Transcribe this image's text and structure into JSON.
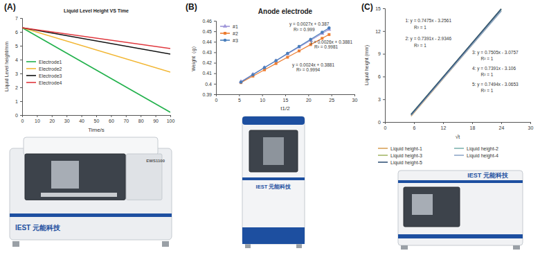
{
  "panels": [
    {
      "label": "(A)",
      "device_texts": [
        "IEST 元能科技",
        "EWS1100"
      ]
    },
    {
      "label": "(B)",
      "device_texts": [
        "IEST 元能科技"
      ]
    },
    {
      "label": "(C)",
      "device_texts": [
        "IEST 元能科技"
      ]
    }
  ],
  "chart_data": [
    {
      "type": "line",
      "title": "Liquid Level Height VS Time",
      "x_label": "Time/s",
      "y_label": "Liquid Level height/mm",
      "x": [
        0,
        100
      ],
      "series": [
        {
          "name": "Electrode1",
          "color": "#22b14c",
          "values": [
            6.3,
            0.2
          ]
        },
        {
          "name": "Electrode2",
          "color": "#f2b632",
          "values": [
            6.3,
            3.1
          ]
        },
        {
          "name": "Electrode3",
          "color": "#111111",
          "values": [
            6.3,
            4.4
          ]
        },
        {
          "name": "Electrode4",
          "color": "#e0383e",
          "values": [
            6.3,
            4.8
          ]
        }
      ],
      "xlim": [
        0,
        100
      ],
      "xticks": [
        0,
        10,
        20,
        30,
        40,
        50,
        60,
        70,
        80,
        90,
        100
      ],
      "ylim": [
        0,
        7
      ],
      "yticks": [
        0,
        1,
        2,
        3,
        4,
        5,
        6,
        7
      ],
      "grid": false,
      "legend": "left"
    },
    {
      "type": "line",
      "title": "Anode electrode",
      "x_label": "t1/2",
      "y_label": "Weight（g）",
      "x": [
        5.4,
        8,
        10.5,
        13,
        15.5,
        18,
        20.5,
        23,
        24.5
      ],
      "series": [
        {
          "name": "#1",
          "color": "#9e95d8",
          "marker": "triangle",
          "values": [
            0.4021,
            0.4089,
            0.4154,
            0.4219,
            0.4284,
            0.4349,
            0.4414,
            0.4479,
            0.4518
          ]
        },
        {
          "name": "#2",
          "color": "#ed7d31",
          "marker": "square",
          "values": [
            0.4011,
            0.4073,
            0.4133,
            0.4193,
            0.4253,
            0.4313,
            0.4373,
            0.4433,
            0.4469
          ]
        },
        {
          "name": "#3",
          "color": "#4a7ebb",
          "marker": "circle",
          "values": [
            0.4016,
            0.4086,
            0.4154,
            0.4221,
            0.4289,
            0.4356,
            0.4424,
            0.4491,
            0.4532
          ]
        }
      ],
      "annotations": [
        "y = 0.0027x + 0.387",
        "R² = 0.999",
        "y = 0.0026x + 0.3881",
        "R² = 0.9981",
        "y = 0.0024x + 0.3881",
        "R² = 0.9994"
      ],
      "xlim": [
        0,
        30
      ],
      "xticks": [
        0,
        5,
        10,
        15,
        20,
        25,
        30
      ],
      "ylim": [
        0.39,
        0.46
      ],
      "yticks": [
        0.39,
        0.4,
        0.41,
        0.42,
        0.43,
        0.44,
        0.45,
        0.46
      ],
      "grid": false,
      "legend": "upper left"
    },
    {
      "type": "line",
      "x_label": "√t",
      "y_label": "Liquid height (mm)",
      "x": [
        5.4,
        24
      ],
      "series": [
        {
          "name": "Liquid height-1",
          "color": "#d9a35b",
          "values": [
            0.78,
            14.68
          ]
        },
        {
          "name": "Liquid height-2",
          "color": "#7fb3b0",
          "values": [
            1.06,
            14.8
          ]
        },
        {
          "name": "Liquid height-3",
          "color": "#a6b86a",
          "values": [
            0.98,
            14.94
          ]
        },
        {
          "name": "Liquid height-4",
          "color": "#8fa8c8",
          "values": [
            0.88,
            14.63
          ]
        },
        {
          "name": "Liquid height-5",
          "color": "#35557a",
          "values": [
            0.98,
            14.92
          ]
        }
      ],
      "annotations": [
        "1: y = 0.7475x - 3.2561",
        "R² = 1",
        "2: y = 0.7391x - 2.9346",
        "R² = 1",
        "3: y = 0.7505x - 3.0757",
        "R² = 1",
        "4: y = 0.7391x - 3.106",
        "R² = 1",
        "5: y = 0.7494x - 3.0653",
        "R² = 1"
      ],
      "xlim": [
        0,
        30
      ],
      "xticks": [
        0,
        6,
        12,
        18,
        24,
        30
      ],
      "ylim": [
        0,
        15
      ],
      "yticks": [
        0,
        3,
        6,
        9,
        12,
        15
      ],
      "grid": false,
      "legend": "bottom"
    }
  ]
}
